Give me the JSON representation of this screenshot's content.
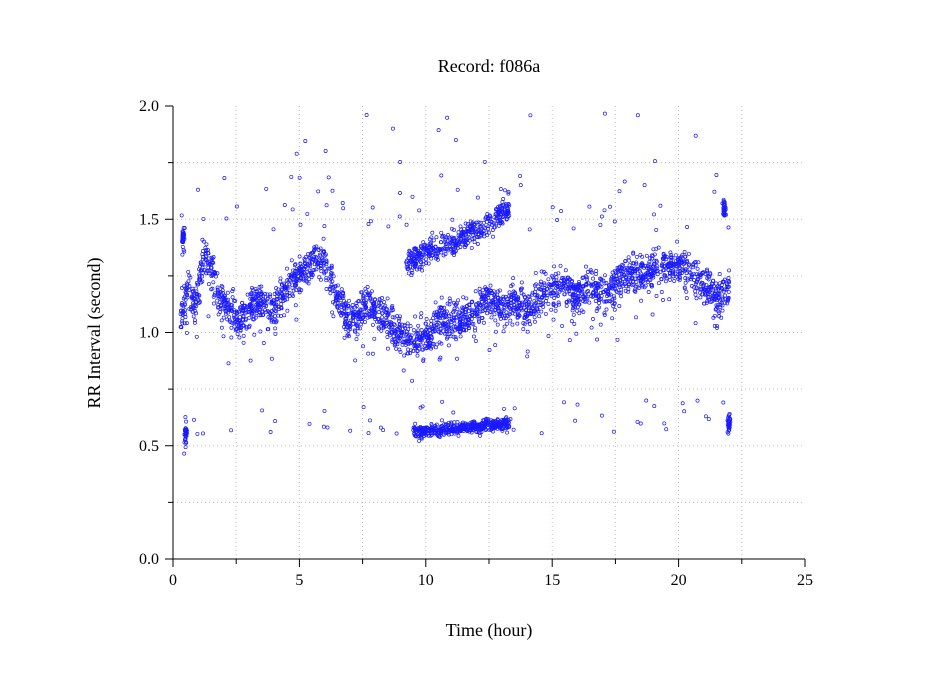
{
  "chart_data": {
    "type": "scatter",
    "title": "Record:  f086a",
    "xlabel": "Time (hour)",
    "ylabel": "RR Interval (second)",
    "xlim": [
      0,
      25
    ],
    "ylim": [
      0,
      2.0
    ],
    "xticks": [
      "0",
      "5",
      "10",
      "15",
      "20",
      "25"
    ],
    "yticks": [
      "0.0",
      "0.5",
      "1.0",
      "1.5",
      "2.0"
    ],
    "grid": true,
    "marker": "open-circle",
    "color": "#1a1aff",
    "trend": [
      [
        0.3,
        1.05
      ],
      [
        0.6,
        1.2
      ],
      [
        0.9,
        1.1
      ],
      [
        1.2,
        1.35
      ],
      [
        1.5,
        1.3
      ],
      [
        1.8,
        1.15
      ],
      [
        2.2,
        1.1
      ],
      [
        2.6,
        1.05
      ],
      [
        3.0,
        1.1
      ],
      [
        3.5,
        1.15
      ],
      [
        4.0,
        1.1
      ],
      [
        4.5,
        1.2
      ],
      [
        5.0,
        1.25
      ],
      [
        5.5,
        1.3
      ],
      [
        6.0,
        1.32
      ],
      [
        6.5,
        1.15
      ],
      [
        7.0,
        1.05
      ],
      [
        7.5,
        1.1
      ],
      [
        8.0,
        1.1
      ],
      [
        8.5,
        1.05
      ],
      [
        9.0,
        1.0
      ],
      [
        9.5,
        0.95
      ],
      [
        10.0,
        0.98
      ],
      [
        10.5,
        1.05
      ],
      [
        11.0,
        1.05
      ],
      [
        11.5,
        1.05
      ],
      [
        12.0,
        1.1
      ],
      [
        12.5,
        1.15
      ],
      [
        13.0,
        1.1
      ],
      [
        13.5,
        1.15
      ],
      [
        14.0,
        1.1
      ],
      [
        14.5,
        1.15
      ],
      [
        15.0,
        1.2
      ],
      [
        15.5,
        1.2
      ],
      [
        16.0,
        1.15
      ],
      [
        16.5,
        1.2
      ],
      [
        17.0,
        1.15
      ],
      [
        17.5,
        1.22
      ],
      [
        18.0,
        1.25
      ],
      [
        18.5,
        1.25
      ],
      [
        19.0,
        1.28
      ],
      [
        19.5,
        1.3
      ],
      [
        20.0,
        1.3
      ],
      [
        20.5,
        1.25
      ],
      [
        21.0,
        1.2
      ],
      [
        21.5,
        1.15
      ],
      [
        22.0,
        1.2
      ]
    ],
    "high_band": [
      [
        9.2,
        1.3
      ],
      [
        10.0,
        1.35
      ],
      [
        11.0,
        1.4
      ],
      [
        12.0,
        1.45
      ],
      [
        12.8,
        1.5
      ],
      [
        13.3,
        1.55
      ]
    ],
    "low_band": [
      [
        9.5,
        0.56
      ],
      [
        10.5,
        0.57
      ],
      [
        11.5,
        0.58
      ],
      [
        12.5,
        0.59
      ],
      [
        13.3,
        0.6
      ]
    ],
    "early_spikes": [
      [
        0.4,
        1.42
      ],
      [
        0.5,
        0.55
      ]
    ],
    "end_cluster": [
      [
        21.8,
        1.55
      ],
      [
        22.0,
        0.6
      ]
    ]
  }
}
